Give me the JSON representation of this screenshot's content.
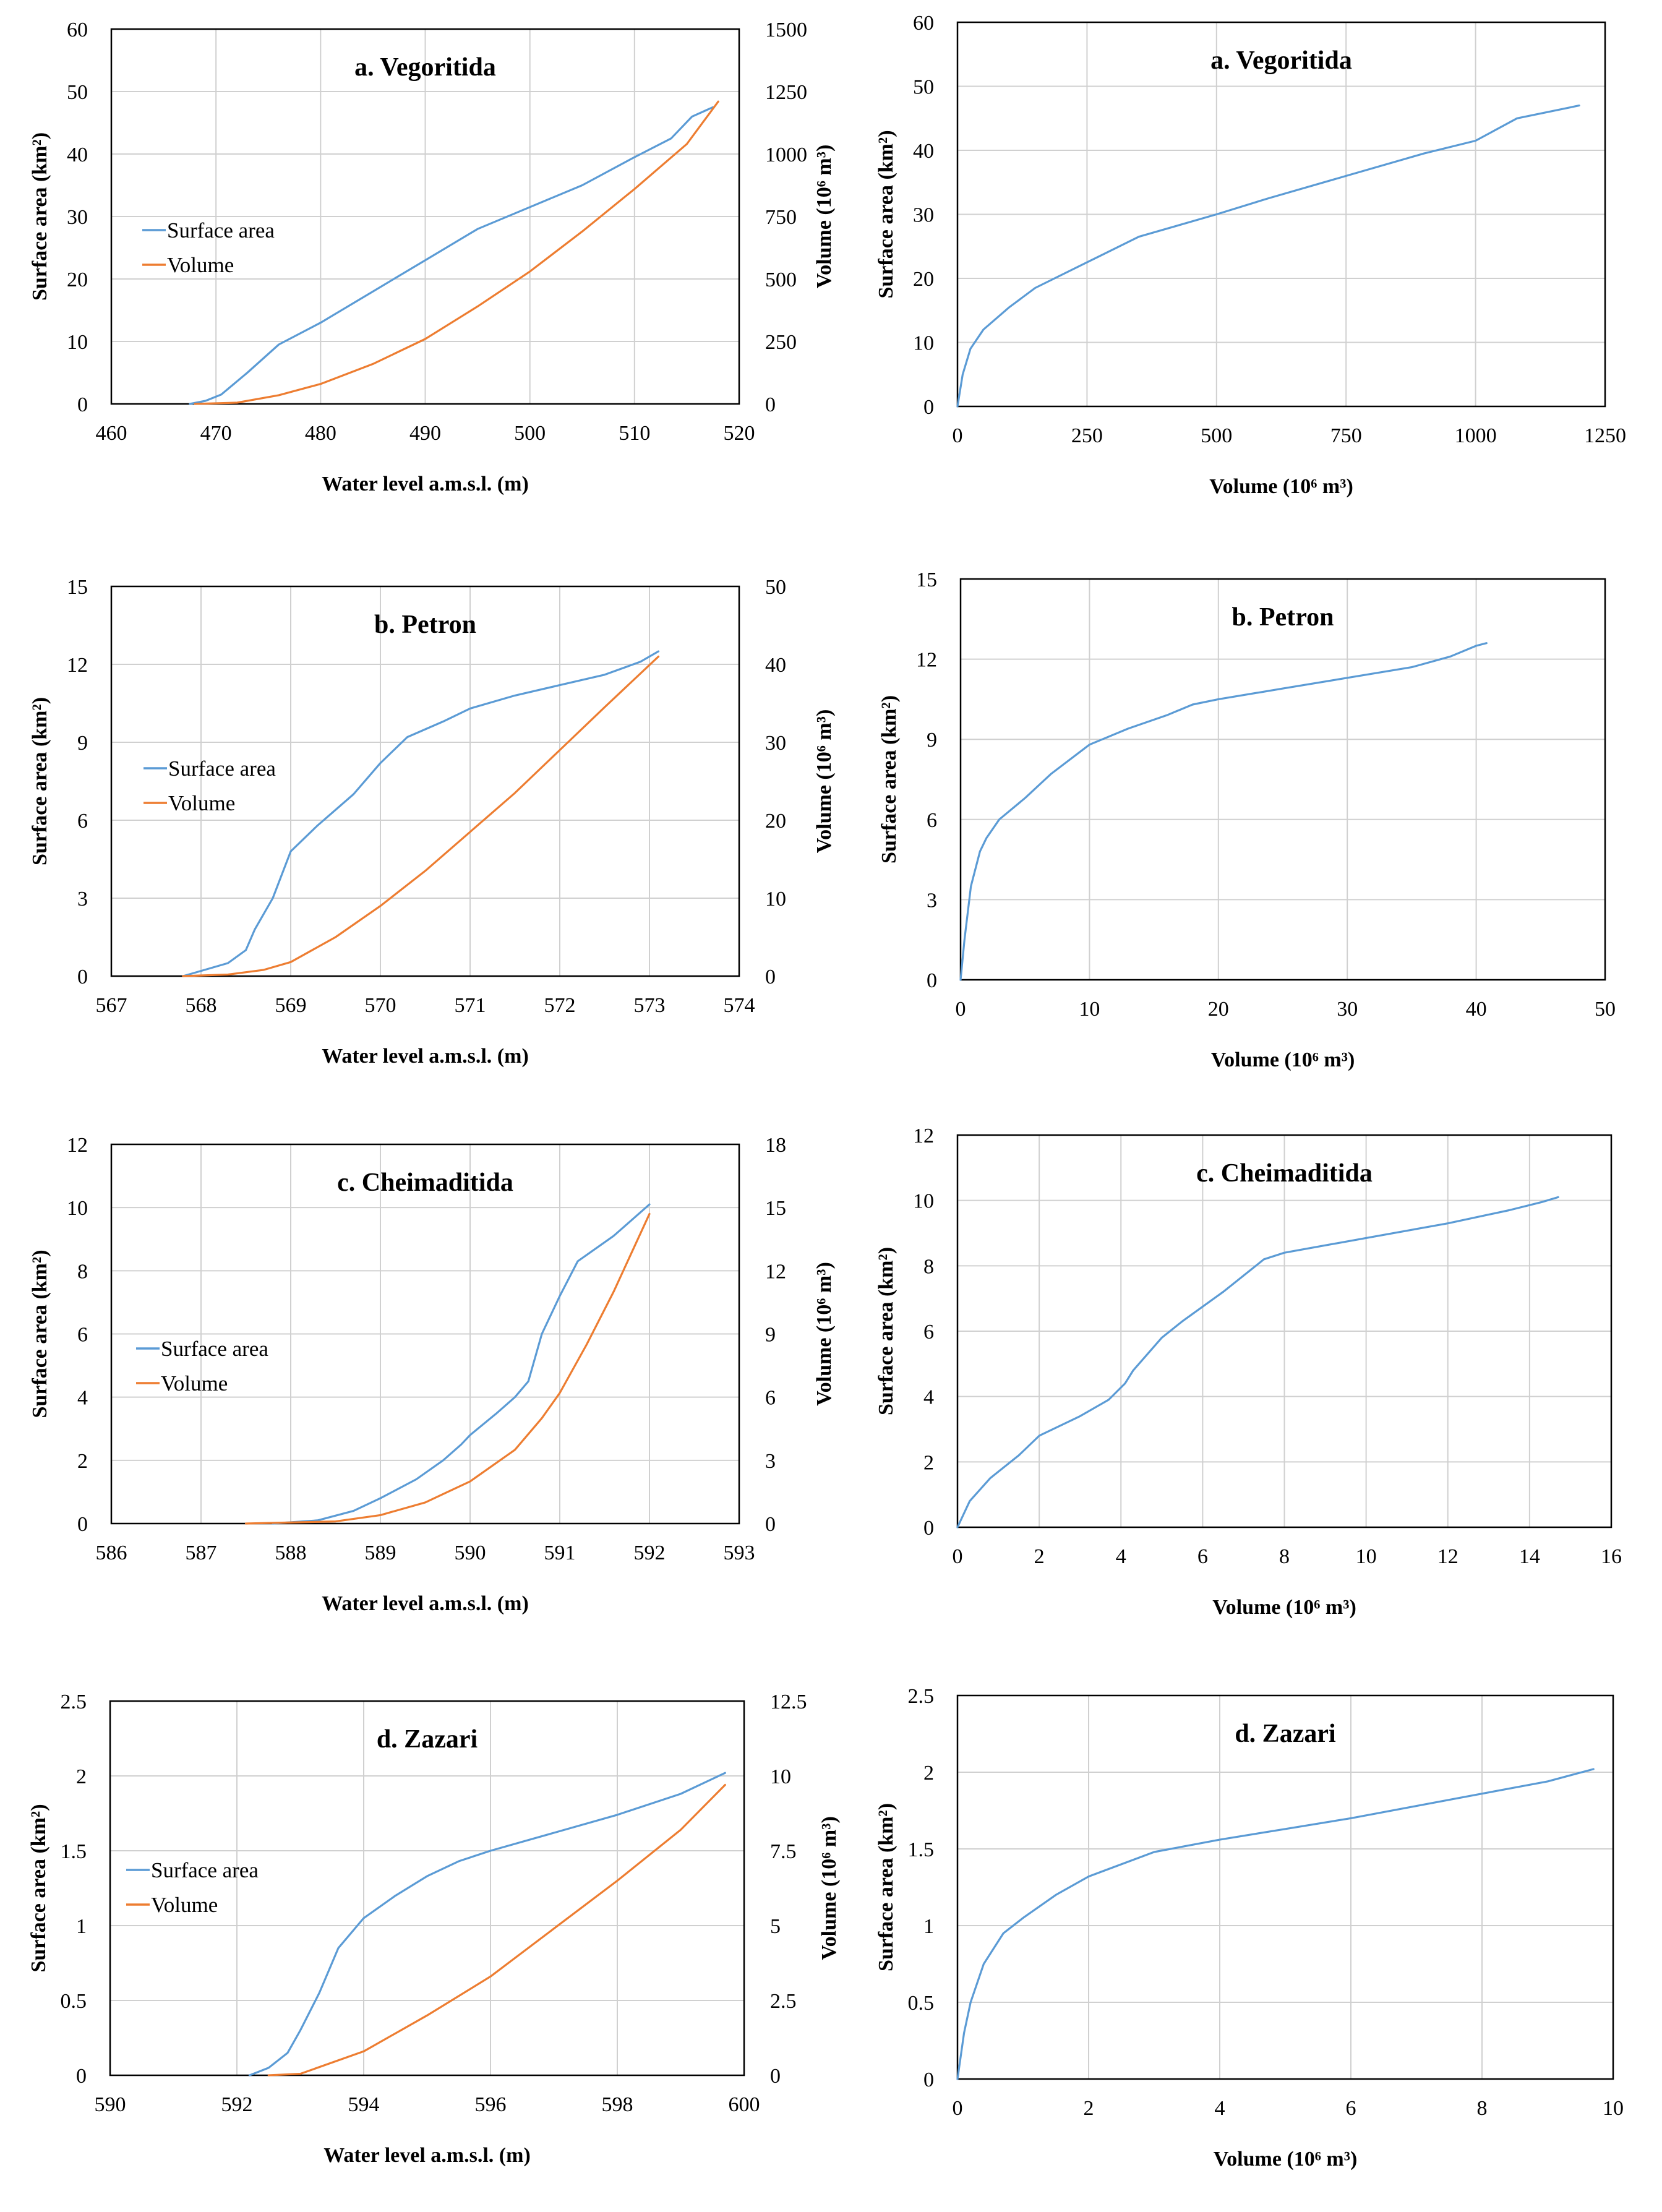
{
  "colors": {
    "surface": "#5b9bd5",
    "volume": "#ed7d31",
    "grid": "#d0d0d0"
  },
  "chart_data": [
    {
      "type": "line",
      "id": "a-level",
      "title": "a. Vegoritida",
      "xlabel": "Water level a.m.s.l. (m)",
      "ylabel": "Surface area (km²)",
      "ylabel2": "Volume (10⁶ m³)",
      "xlim": [
        460,
        520
      ],
      "ylim": [
        0,
        60
      ],
      "y2lim": [
        0,
        1500
      ],
      "xticks": [
        460,
        470,
        480,
        490,
        500,
        510,
        520
      ],
      "yticks": [
        0,
        10,
        20,
        30,
        40,
        50,
        60
      ],
      "y2ticks": [
        0,
        250,
        500,
        750,
        1000,
        1250,
        1500
      ],
      "legend": [
        "Surface area",
        "Volume"
      ],
      "legend_position": "left",
      "series": [
        {
          "name": "Surface area",
          "axis": "left",
          "x": [
            467.5,
            469,
            470.5,
            473,
            476,
            480,
            485,
            490,
            495,
            500,
            505,
            510,
            513.5,
            515.5,
            517.5
          ],
          "y": [
            0,
            0.5,
            1.5,
            5,
            9.5,
            13,
            18,
            23,
            28,
            31.5,
            35,
            39.5,
            42.5,
            46,
            47.5
          ]
        },
        {
          "name": "Volume",
          "axis": "right",
          "x": [
            468,
            472,
            476,
            480,
            485,
            490,
            495,
            500,
            505,
            510,
            515,
            518
          ],
          "y": [
            0,
            5,
            35,
            80,
            160,
            260,
            390,
            530,
            690,
            860,
            1040,
            1210
          ]
        }
      ]
    },
    {
      "type": "line",
      "id": "a-volume",
      "title": "a. Vegoritida",
      "xlabel": "Volume (10⁶ m³)",
      "ylabel": "Surface area (km²)",
      "xlim": [
        0,
        1250
      ],
      "ylim": [
        0,
        60
      ],
      "xticks": [
        0,
        250,
        500,
        750,
        1000,
        1250
      ],
      "yticks": [
        0,
        10,
        20,
        30,
        40,
        50,
        60
      ],
      "series": [
        {
          "name": "Surface area",
          "axis": "left",
          "x": [
            0,
            10,
            25,
            50,
            100,
            150,
            250,
            350,
            500,
            600,
            750,
            900,
            1000,
            1080,
            1200
          ],
          "y": [
            0,
            5,
            9,
            12,
            15.5,
            18.5,
            22.5,
            26.5,
            30,
            32.5,
            36,
            39.5,
            41.5,
            45,
            47
          ]
        }
      ]
    },
    {
      "type": "line",
      "id": "b-level",
      "title": "b. Petron",
      "xlabel": "Water level a.m.s.l. (m)",
      "ylabel": "Surface area (km²)",
      "ylabel2": "Volume (10⁶ m³)",
      "xlim": [
        567,
        574
      ],
      "ylim": [
        0,
        15
      ],
      "y2lim": [
        0,
        50
      ],
      "xticks": [
        567,
        568,
        569,
        570,
        571,
        572,
        573,
        574
      ],
      "yticks": [
        0,
        3,
        6,
        9,
        12,
        15
      ],
      "y2ticks": [
        0,
        10,
        20,
        30,
        40,
        50
      ],
      "legend": [
        "Surface area",
        "Volume"
      ],
      "legend_position": "left",
      "series": [
        {
          "name": "Surface area",
          "axis": "left",
          "x": [
            567.8,
            568,
            568.3,
            568.5,
            568.6,
            568.8,
            569,
            569.3,
            569.7,
            570,
            570.3,
            570.7,
            571,
            571.5,
            572,
            572.5,
            572.9,
            573.1
          ],
          "y": [
            0,
            0.2,
            0.5,
            1,
            1.8,
            3,
            4.8,
            5.8,
            7,
            8.2,
            9.2,
            9.8,
            10.3,
            10.8,
            11.2,
            11.6,
            12.1,
            12.5
          ]
        },
        {
          "name": "Volume",
          "axis": "right",
          "x": [
            567.8,
            568.3,
            568.7,
            569,
            569.5,
            570,
            570.5,
            571,
            571.5,
            572,
            572.5,
            573.1
          ],
          "y": [
            0,
            0.2,
            0.8,
            1.8,
            5,
            9,
            13.5,
            18.5,
            23.5,
            29,
            34.5,
            41
          ]
        }
      ]
    },
    {
      "type": "line",
      "id": "b-volume",
      "title": "b. Petron",
      "xlabel": "Volume (10⁶ m³)",
      "ylabel": "Surface area (km²)",
      "xlim": [
        0,
        50
      ],
      "ylim": [
        0,
        15
      ],
      "xticks": [
        0,
        10,
        20,
        30,
        40,
        50
      ],
      "yticks": [
        0,
        3,
        6,
        9,
        12,
        15
      ],
      "series": [
        {
          "name": "Surface area",
          "axis": "left",
          "x": [
            0,
            0.3,
            0.8,
            1.5,
            2,
            3,
            5,
            7,
            10,
            13,
            16,
            18,
            20,
            25,
            30,
            35,
            38,
            40,
            40.8
          ],
          "y": [
            0,
            1.5,
            3.5,
            4.8,
            5.3,
            6,
            6.8,
            7.7,
            8.8,
            9.4,
            9.9,
            10.3,
            10.5,
            10.9,
            11.3,
            11.7,
            12.1,
            12.5,
            12.6
          ]
        }
      ]
    },
    {
      "type": "line",
      "id": "c-level",
      "title": "c. Cheimaditida",
      "xlabel": "Water level a.m.s.l. (m)",
      "ylabel": "Surface area (km²)",
      "ylabel2": "Volume (10⁶ m³)",
      "xlim": [
        586,
        593
      ],
      "ylim": [
        0,
        12
      ],
      "y2lim": [
        0,
        18
      ],
      "xticks": [
        586,
        587,
        588,
        589,
        590,
        591,
        592,
        593
      ],
      "yticks": [
        0,
        2,
        4,
        6,
        8,
        10,
        12
      ],
      "y2ticks": [
        0,
        3,
        6,
        9,
        12,
        15,
        18
      ],
      "legend": [
        "Surface area",
        "Volume"
      ],
      "legend_position": "left",
      "series": [
        {
          "name": "Surface area",
          "axis": "left",
          "x": [
            587.8,
            588.3,
            588.7,
            589,
            589.4,
            589.7,
            589.9,
            590,
            590.3,
            590.5,
            590.65,
            590.8,
            591,
            591.2,
            591.6,
            592
          ],
          "y": [
            0,
            0.1,
            0.4,
            0.8,
            1.4,
            2,
            2.5,
            2.8,
            3.5,
            4,
            4.5,
            6,
            7.2,
            8.3,
            9.1,
            10.1
          ]
        },
        {
          "name": "Volume",
          "axis": "right",
          "x": [
            587.5,
            588.5,
            589,
            589.5,
            590,
            590.5,
            590.8,
            591,
            591.3,
            591.6,
            592
          ],
          "y": [
            0,
            0.1,
            0.4,
            1,
            2,
            3.5,
            5,
            6.2,
            8.5,
            11,
            14.7
          ]
        }
      ]
    },
    {
      "type": "line",
      "id": "c-volume",
      "title": "c. Cheimaditida",
      "xlabel": "Volume (10⁶ m³)",
      "ylabel": "Surface area (km²)",
      "xlim": [
        0,
        16
      ],
      "ylim": [
        0,
        12
      ],
      "xticks": [
        0,
        2,
        4,
        6,
        8,
        10,
        12,
        14,
        16
      ],
      "yticks": [
        0,
        2,
        4,
        6,
        8,
        10,
        12
      ],
      "series": [
        {
          "name": "Surface area",
          "axis": "left",
          "x": [
            0,
            0.3,
            0.8,
            1.5,
            2,
            3,
            3.7,
            4.1,
            4.3,
            5,
            5.5,
            6.5,
            7.5,
            8,
            10,
            12,
            13.5,
            14.3,
            14.7
          ],
          "y": [
            0,
            0.8,
            1.5,
            2.2,
            2.8,
            3.4,
            3.9,
            4.4,
            4.8,
            5.8,
            6.3,
            7.2,
            8.2,
            8.4,
            8.85,
            9.3,
            9.7,
            9.95,
            10.1
          ]
        }
      ]
    },
    {
      "type": "line",
      "id": "d-level",
      "title": "d. Zazari",
      "xlabel": "Water level a.m.s.l. (m)",
      "ylabel": "Surface area (km²)",
      "ylabel2": "Volume (10⁶ m³)",
      "xlim": [
        590,
        600
      ],
      "ylim": [
        0,
        2.5
      ],
      "y2lim": [
        0,
        12.5
      ],
      "xticks": [
        590,
        592,
        594,
        596,
        598,
        600
      ],
      "yticks": [
        0,
        0.5,
        1,
        1.5,
        2,
        2.5
      ],
      "y2ticks": [
        0,
        2.5,
        5,
        7.5,
        10,
        12.5
      ],
      "legend": [
        "Surface area",
        "Volume"
      ],
      "legend_position": "left",
      "series": [
        {
          "name": "Surface area",
          "axis": "left",
          "x": [
            592.2,
            592.5,
            592.8,
            593,
            593.3,
            593.6,
            594,
            594.5,
            595,
            595.5,
            596,
            597,
            598,
            599,
            599.7
          ],
          "y": [
            0,
            0.05,
            0.15,
            0.3,
            0.55,
            0.85,
            1.05,
            1.2,
            1.33,
            1.43,
            1.5,
            1.62,
            1.74,
            1.88,
            2.02
          ]
        },
        {
          "name": "Volume",
          "axis": "right",
          "x": [
            592.5,
            593,
            594,
            595,
            596,
            597,
            598,
            599,
            599.7
          ],
          "y": [
            0,
            0.05,
            0.8,
            2,
            3.3,
            4.9,
            6.5,
            8.2,
            9.7
          ]
        }
      ]
    },
    {
      "type": "line",
      "id": "d-volume",
      "title": "d. Zazari",
      "xlabel": "Volume (10⁶ m³)",
      "ylabel": "Surface area (km²)",
      "xlim": [
        0,
        10
      ],
      "ylim": [
        0,
        2.5
      ],
      "xticks": [
        0,
        2,
        4,
        6,
        8,
        10
      ],
      "yticks": [
        0,
        0.5,
        1,
        1.5,
        2,
        2.5
      ],
      "series": [
        {
          "name": "Surface area",
          "axis": "left",
          "x": [
            0,
            0.1,
            0.2,
            0.4,
            0.7,
            1,
            1.5,
            2,
            3,
            4,
            5,
            6,
            7,
            8,
            9,
            9.7
          ],
          "y": [
            0,
            0.3,
            0.5,
            0.75,
            0.95,
            1.05,
            1.2,
            1.32,
            1.48,
            1.56,
            1.63,
            1.7,
            1.78,
            1.86,
            1.94,
            2.02
          ]
        }
      ]
    }
  ]
}
